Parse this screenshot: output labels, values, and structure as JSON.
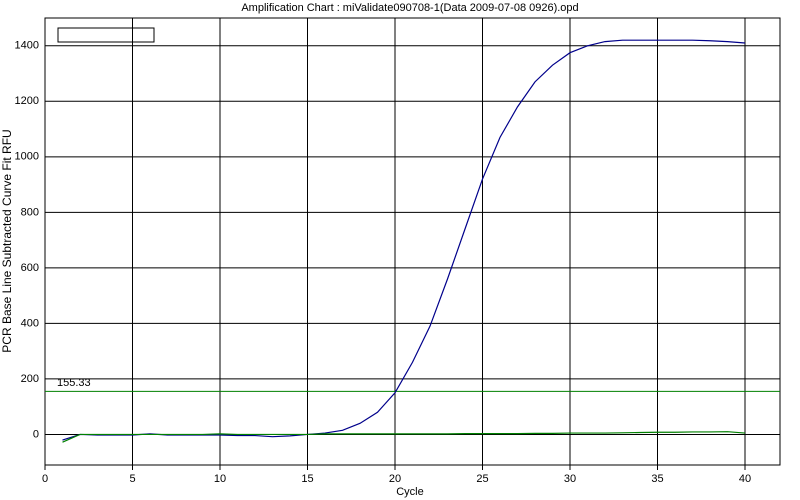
{
  "chart_data": {
    "type": "line",
    "title": "Amplification Chart : miValidate090708-1(Data 2009-07-08 0926).opd",
    "x_label": "Cycle",
    "y_label": "PCR Base Line Subtracted Curve Fit RFU",
    "x": [
      1,
      2,
      3,
      4,
      5,
      6,
      7,
      8,
      9,
      10,
      11,
      12,
      13,
      14,
      15,
      16,
      17,
      18,
      19,
      20,
      21,
      22,
      23,
      24,
      25,
      26,
      27,
      28,
      29,
      30,
      31,
      32,
      33,
      34,
      35,
      36,
      37,
      38,
      39,
      40
    ],
    "series": [
      {
        "color": "#00008b",
        "values": [
          -20,
          0,
          -2,
          -2,
          -2,
          2,
          -2,
          -2,
          -2,
          -2,
          -4,
          -4,
          -8,
          -5,
          0,
          5,
          15,
          40,
          80,
          150,
          260,
          390,
          560,
          740,
          920,
          1070,
          1180,
          1270,
          1330,
          1375,
          1400,
          1415,
          1420,
          1420,
          1420,
          1420,
          1420,
          1418,
          1415,
          1410
        ]
      },
      {
        "color": "#008000",
        "values": [
          -28,
          0,
          0,
          0,
          0,
          0,
          0,
          0,
          0,
          2,
          0,
          0,
          0,
          0,
          0,
          2,
          2,
          2,
          2,
          2,
          2,
          2,
          2,
          3,
          3,
          3,
          3,
          4,
          4,
          5,
          5,
          5,
          6,
          7,
          8,
          8,
          9,
          9,
          10,
          5
        ]
      }
    ],
    "threshold": 155.33,
    "threshold_color": "#008000",
    "xlim": [
      0,
      42
    ],
    "xticks": [
      0,
      5,
      10,
      15,
      20,
      25,
      30,
      35,
      40
    ],
    "ylim": [
      -110,
      1500
    ],
    "yticks": [
      0,
      200,
      400,
      600,
      800,
      1000,
      1200,
      1400
    ],
    "grid": true
  }
}
